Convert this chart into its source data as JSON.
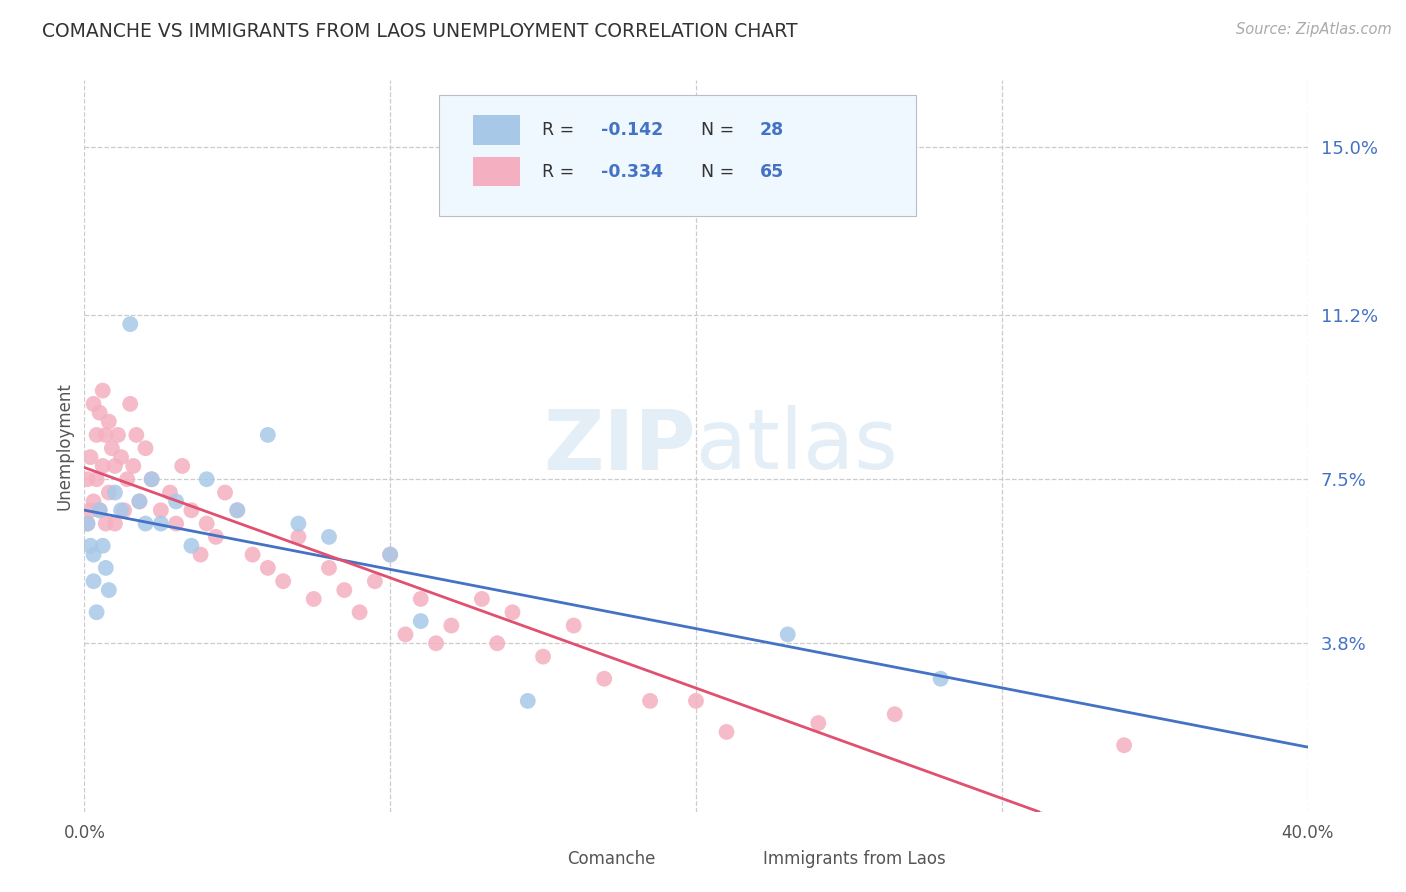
{
  "title": "COMANCHE VS IMMIGRANTS FROM LAOS UNEMPLOYMENT CORRELATION CHART",
  "source": "Source: ZipAtlas.com",
  "ylabel": "Unemployment",
  "ytick_labels": [
    "15.0%",
    "11.2%",
    "7.5%",
    "3.8%"
  ],
  "ytick_values": [
    0.15,
    0.112,
    0.075,
    0.038
  ],
  "xlim": [
    0.0,
    0.4
  ],
  "ylim": [
    0.0,
    0.165
  ],
  "legend_label1": "Comanche",
  "legend_label2": "Immigrants from Laos",
  "comanche_color": "#a8c8e8",
  "laos_color": "#f4b0c0",
  "trendline_comanche_color": "#4472c4",
  "trendline_laos_color": "#e05070",
  "watermark_zip": "ZIP",
  "watermark_atlas": "atlas",
  "comanche_x": [
    0.001,
    0.002,
    0.003,
    0.003,
    0.004,
    0.005,
    0.006,
    0.007,
    0.008,
    0.01,
    0.012,
    0.015,
    0.018,
    0.02,
    0.022,
    0.025,
    0.03,
    0.035,
    0.04,
    0.05,
    0.06,
    0.07,
    0.08,
    0.1,
    0.11,
    0.145,
    0.23,
    0.28
  ],
  "comanche_y": [
    0.065,
    0.06,
    0.058,
    0.052,
    0.045,
    0.068,
    0.06,
    0.055,
    0.05,
    0.072,
    0.068,
    0.11,
    0.07,
    0.065,
    0.075,
    0.065,
    0.07,
    0.06,
    0.075,
    0.068,
    0.085,
    0.065,
    0.062,
    0.058,
    0.043,
    0.025,
    0.04,
    0.03
  ],
  "laos_x": [
    0.001,
    0.001,
    0.002,
    0.002,
    0.003,
    0.003,
    0.004,
    0.004,
    0.005,
    0.005,
    0.006,
    0.006,
    0.007,
    0.007,
    0.008,
    0.008,
    0.009,
    0.01,
    0.01,
    0.011,
    0.012,
    0.013,
    0.014,
    0.015,
    0.016,
    0.017,
    0.018,
    0.02,
    0.022,
    0.025,
    0.028,
    0.03,
    0.032,
    0.035,
    0.038,
    0.04,
    0.043,
    0.046,
    0.05,
    0.055,
    0.06,
    0.065,
    0.07,
    0.075,
    0.08,
    0.085,
    0.09,
    0.095,
    0.1,
    0.105,
    0.11,
    0.115,
    0.12,
    0.13,
    0.135,
    0.14,
    0.15,
    0.16,
    0.17,
    0.185,
    0.2,
    0.21,
    0.24,
    0.265,
    0.34
  ],
  "laos_y": [
    0.075,
    0.065,
    0.08,
    0.068,
    0.092,
    0.07,
    0.085,
    0.075,
    0.09,
    0.068,
    0.095,
    0.078,
    0.085,
    0.065,
    0.088,
    0.072,
    0.082,
    0.078,
    0.065,
    0.085,
    0.08,
    0.068,
    0.075,
    0.092,
    0.078,
    0.085,
    0.07,
    0.082,
    0.075,
    0.068,
    0.072,
    0.065,
    0.078,
    0.068,
    0.058,
    0.065,
    0.062,
    0.072,
    0.068,
    0.058,
    0.055,
    0.052,
    0.062,
    0.048,
    0.055,
    0.05,
    0.045,
    0.052,
    0.058,
    0.04,
    0.048,
    0.038,
    0.042,
    0.048,
    0.038,
    0.045,
    0.035,
    0.042,
    0.03,
    0.025,
    0.025,
    0.018,
    0.02,
    0.022,
    0.015
  ]
}
